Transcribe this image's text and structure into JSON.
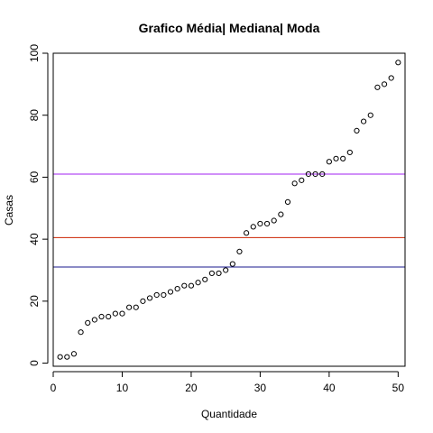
{
  "chart_data": {
    "type": "scatter",
    "title": "Grafico Média| Mediana| Moda",
    "xlabel": "Quantidade",
    "ylabel": "Casas",
    "xlim": [
      0,
      51
    ],
    "ylim": [
      -1,
      100
    ],
    "xticks": [
      "0",
      "10",
      "20",
      "30",
      "40",
      "50"
    ],
    "yticks": [
      "0",
      "20",
      "40",
      "60",
      "80",
      "100"
    ],
    "grid": false,
    "x": [
      1,
      2,
      3,
      4,
      5,
      6,
      7,
      8,
      9,
      10,
      11,
      12,
      13,
      14,
      15,
      16,
      17,
      18,
      19,
      20,
      21,
      22,
      23,
      24,
      25,
      26,
      27,
      28,
      29,
      30,
      31,
      32,
      33,
      34,
      35,
      36,
      37,
      38,
      39,
      40,
      41,
      42,
      43,
      44,
      45,
      46,
      47,
      48,
      49,
      50
    ],
    "y": [
      2,
      2,
      3,
      10,
      13,
      14,
      15,
      15,
      16,
      16,
      18,
      18,
      20,
      21,
      22,
      22,
      23,
      24,
      25,
      25,
      26,
      27,
      29,
      29,
      30,
      32,
      36,
      42,
      44,
      45,
      45,
      46,
      48,
      52,
      58,
      59,
      61,
      61,
      61,
      65,
      66,
      66,
      68,
      75,
      78,
      80,
      89,
      90,
      92,
      97
    ],
    "hlines": [
      {
        "value": 61.0,
        "color": "#a020f0"
      },
      {
        "value": 40.5,
        "color": "#cc2200"
      },
      {
        "value": 31.0,
        "color": "#1a1a8c"
      }
    ],
    "point_color": "#000000"
  }
}
